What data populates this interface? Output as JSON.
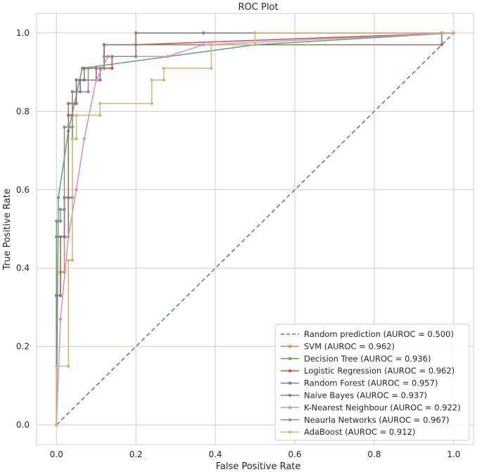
{
  "chart_data": {
    "type": "line",
    "title": "ROC Plot",
    "xlabel": "False Positive Rate",
    "ylabel": "True Positive Rate",
    "xlim": [
      -0.05,
      1.05
    ],
    "ylim": [
      -0.05,
      1.05
    ],
    "xticks": [
      0.0,
      0.2,
      0.4,
      0.6,
      0.8,
      1.0
    ],
    "yticks": [
      0.0,
      0.2,
      0.4,
      0.6,
      0.8,
      1.0
    ],
    "xtick_labels": [
      "0.0",
      "0.2",
      "0.4",
      "0.6",
      "0.8",
      "1.0"
    ],
    "ytick_labels": [
      "0.0",
      "0.2",
      "0.4",
      "0.6",
      "0.8",
      "1.0"
    ],
    "grid": true,
    "legend_position": "bottom-right",
    "series": [
      {
        "name": "Random prediction (AUROC = 0.500)",
        "color": "#4c72b0",
        "style": "dashed",
        "x": [
          0,
          1
        ],
        "y": [
          0,
          1
        ]
      },
      {
        "name": "SVM (AUROC = 0.962)",
        "color": "#dd8452",
        "style": "solid-markers",
        "x": [
          0,
          0,
          0.01,
          0.01,
          0.02,
          0.02,
          0.03,
          0.03,
          0.04,
          0.04,
          0.05,
          0.05,
          0.07,
          0.07,
          0.12,
          0.12,
          0.2,
          0.2,
          0.5,
          1
        ],
        "y": [
          0,
          0.33,
          0.33,
          0.39,
          0.39,
          0.48,
          0.48,
          0.58,
          0.58,
          0.82,
          0.82,
          0.88,
          0.88,
          0.91,
          0.91,
          0.97,
          0.97,
          1.0,
          1.0,
          1.0
        ]
      },
      {
        "name": "Decision Tree (AUROC = 0.936)",
        "color": "#55a868",
        "style": "solid-markers",
        "x": [
          0,
          0.005,
          0.03,
          0.065,
          0.5,
          1
        ],
        "y": [
          0,
          0.58,
          0.75,
          0.91,
          0.97,
          1.0
        ]
      },
      {
        "name": "Logistic Regression (AUROC = 0.962)",
        "color": "#c44e52",
        "style": "solid-markers",
        "x": [
          0,
          0,
          0.01,
          0.01,
          0.02,
          0.02,
          0.03,
          0.03,
          0.04,
          0.04,
          0.06,
          0.06,
          0.1,
          0.1,
          0.14,
          0.14,
          0.2,
          0.2,
          1
        ],
        "y": [
          0,
          0.33,
          0.33,
          0.48,
          0.48,
          0.58,
          0.58,
          0.79,
          0.79,
          0.85,
          0.85,
          0.88,
          0.88,
          0.91,
          0.91,
          0.94,
          0.94,
          0.97,
          1.0
        ]
      },
      {
        "name": "Random Forest (AUROC = 0.957)",
        "color": "#8172b2",
        "style": "solid-markers",
        "x": [
          0,
          0,
          0.02,
          0.02,
          0.04,
          0.04,
          0.06,
          0.06,
          0.11,
          0.11,
          0.12,
          0.12,
          0.2,
          0.2,
          0.37,
          1
        ],
        "y": [
          0,
          0.48,
          0.48,
          0.58,
          0.58,
          0.85,
          0.85,
          0.88,
          0.88,
          0.91,
          0.91,
          0.97,
          0.97,
          1.0,
          1.0,
          1.0
        ]
      },
      {
        "name": "Naive Bayes (AUROC = 0.937)",
        "color": "#937860",
        "style": "solid-markers",
        "x": [
          0,
          0,
          0.01,
          0.01,
          0.03,
          0.03,
          0.05,
          0.05,
          0.07,
          0.07,
          0.12,
          0.12,
          0.97,
          0.97,
          1
        ],
        "y": [
          0,
          0.33,
          0.33,
          0.48,
          0.48,
          0.82,
          0.82,
          0.88,
          0.88,
          0.91,
          0.91,
          0.97,
          0.97,
          1.0,
          1.0
        ]
      },
      {
        "name": "K-Nearest Neighbour (AUROC = 0.922)",
        "color": "#da8bc3",
        "style": "solid-markers",
        "x": [
          0,
          0.01,
          0.03,
          0.05,
          0.07,
          0.1,
          0.13,
          0.28,
          0.37,
          1
        ],
        "y": [
          0,
          0.27,
          0.48,
          0.6,
          0.73,
          0.88,
          0.94,
          0.94,
          0.97,
          1.0
        ]
      },
      {
        "name": "Neaurla Networks (AUROC = 0.967)",
        "color": "#8c8c8c",
        "style": "solid-markers",
        "x": [
          0,
          0,
          0.01,
          0.01,
          0.02,
          0.02,
          0.04,
          0.04,
          0.08,
          0.08,
          0.12,
          0.12,
          0.2,
          0.2,
          1
        ],
        "y": [
          0,
          0.52,
          0.52,
          0.55,
          0.55,
          0.76,
          0.76,
          0.85,
          0.85,
          0.91,
          0.91,
          0.94,
          0.94,
          1.0,
          1.0
        ]
      },
      {
        "name": "AdaBoost (AUROC = 0.912)",
        "color": "#ccb974",
        "style": "solid-markers",
        "x": [
          0,
          0,
          0.03,
          0.03,
          0.04,
          0.04,
          0.05,
          0.05,
          0.11,
          0.11,
          0.24,
          0.24,
          0.27,
          0.27,
          0.39,
          0.39,
          0.5,
          0.5,
          1
        ],
        "y": [
          0,
          0.15,
          0.15,
          0.42,
          0.42,
          0.73,
          0.73,
          0.79,
          0.79,
          0.82,
          0.82,
          0.88,
          0.88,
          0.91,
          0.91,
          0.97,
          0.97,
          1.0,
          1.0
        ]
      }
    ]
  }
}
